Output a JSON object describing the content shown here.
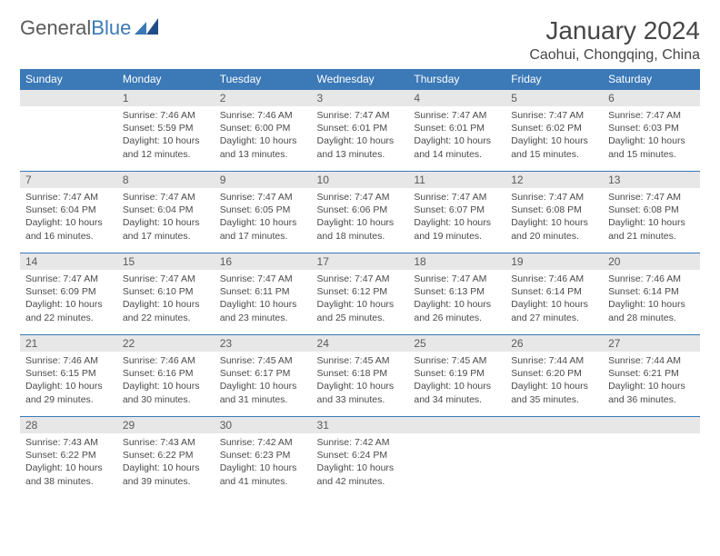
{
  "logo": {
    "text1": "General",
    "text2": "Blue"
  },
  "title": {
    "month": "January 2024",
    "location": "Caohui, Chongqing, China"
  },
  "colors": {
    "header_bg": "#3b79b7",
    "header_fg": "#ffffff",
    "daynum_bg": "#e7e7e7",
    "text": "#4a4a4a",
    "border": "#3b79b7"
  },
  "weekdays": [
    "Sunday",
    "Monday",
    "Tuesday",
    "Wednesday",
    "Thursday",
    "Friday",
    "Saturday"
  ],
  "start_weekday": 1,
  "days": [
    {
      "n": 1,
      "sr": "7:46 AM",
      "ss": "5:59 PM",
      "dl": "10 hours and 12 minutes."
    },
    {
      "n": 2,
      "sr": "7:46 AM",
      "ss": "6:00 PM",
      "dl": "10 hours and 13 minutes."
    },
    {
      "n": 3,
      "sr": "7:47 AM",
      "ss": "6:01 PM",
      "dl": "10 hours and 13 minutes."
    },
    {
      "n": 4,
      "sr": "7:47 AM",
      "ss": "6:01 PM",
      "dl": "10 hours and 14 minutes."
    },
    {
      "n": 5,
      "sr": "7:47 AM",
      "ss": "6:02 PM",
      "dl": "10 hours and 15 minutes."
    },
    {
      "n": 6,
      "sr": "7:47 AM",
      "ss": "6:03 PM",
      "dl": "10 hours and 15 minutes."
    },
    {
      "n": 7,
      "sr": "7:47 AM",
      "ss": "6:04 PM",
      "dl": "10 hours and 16 minutes."
    },
    {
      "n": 8,
      "sr": "7:47 AM",
      "ss": "6:04 PM",
      "dl": "10 hours and 17 minutes."
    },
    {
      "n": 9,
      "sr": "7:47 AM",
      "ss": "6:05 PM",
      "dl": "10 hours and 17 minutes."
    },
    {
      "n": 10,
      "sr": "7:47 AM",
      "ss": "6:06 PM",
      "dl": "10 hours and 18 minutes."
    },
    {
      "n": 11,
      "sr": "7:47 AM",
      "ss": "6:07 PM",
      "dl": "10 hours and 19 minutes."
    },
    {
      "n": 12,
      "sr": "7:47 AM",
      "ss": "6:08 PM",
      "dl": "10 hours and 20 minutes."
    },
    {
      "n": 13,
      "sr": "7:47 AM",
      "ss": "6:08 PM",
      "dl": "10 hours and 21 minutes."
    },
    {
      "n": 14,
      "sr": "7:47 AM",
      "ss": "6:09 PM",
      "dl": "10 hours and 22 minutes."
    },
    {
      "n": 15,
      "sr": "7:47 AM",
      "ss": "6:10 PM",
      "dl": "10 hours and 22 minutes."
    },
    {
      "n": 16,
      "sr": "7:47 AM",
      "ss": "6:11 PM",
      "dl": "10 hours and 23 minutes."
    },
    {
      "n": 17,
      "sr": "7:47 AM",
      "ss": "6:12 PM",
      "dl": "10 hours and 25 minutes."
    },
    {
      "n": 18,
      "sr": "7:47 AM",
      "ss": "6:13 PM",
      "dl": "10 hours and 26 minutes."
    },
    {
      "n": 19,
      "sr": "7:46 AM",
      "ss": "6:14 PM",
      "dl": "10 hours and 27 minutes."
    },
    {
      "n": 20,
      "sr": "7:46 AM",
      "ss": "6:14 PM",
      "dl": "10 hours and 28 minutes."
    },
    {
      "n": 21,
      "sr": "7:46 AM",
      "ss": "6:15 PM",
      "dl": "10 hours and 29 minutes."
    },
    {
      "n": 22,
      "sr": "7:46 AM",
      "ss": "6:16 PM",
      "dl": "10 hours and 30 minutes."
    },
    {
      "n": 23,
      "sr": "7:45 AM",
      "ss": "6:17 PM",
      "dl": "10 hours and 31 minutes."
    },
    {
      "n": 24,
      "sr": "7:45 AM",
      "ss": "6:18 PM",
      "dl": "10 hours and 33 minutes."
    },
    {
      "n": 25,
      "sr": "7:45 AM",
      "ss": "6:19 PM",
      "dl": "10 hours and 34 minutes."
    },
    {
      "n": 26,
      "sr": "7:44 AM",
      "ss": "6:20 PM",
      "dl": "10 hours and 35 minutes."
    },
    {
      "n": 27,
      "sr": "7:44 AM",
      "ss": "6:21 PM",
      "dl": "10 hours and 36 minutes."
    },
    {
      "n": 28,
      "sr": "7:43 AM",
      "ss": "6:22 PM",
      "dl": "10 hours and 38 minutes."
    },
    {
      "n": 29,
      "sr": "7:43 AM",
      "ss": "6:22 PM",
      "dl": "10 hours and 39 minutes."
    },
    {
      "n": 30,
      "sr": "7:42 AM",
      "ss": "6:23 PM",
      "dl": "10 hours and 41 minutes."
    },
    {
      "n": 31,
      "sr": "7:42 AM",
      "ss": "6:24 PM",
      "dl": "10 hours and 42 minutes."
    }
  ],
  "labels": {
    "sunrise": "Sunrise:",
    "sunset": "Sunset:",
    "daylight": "Daylight:"
  }
}
